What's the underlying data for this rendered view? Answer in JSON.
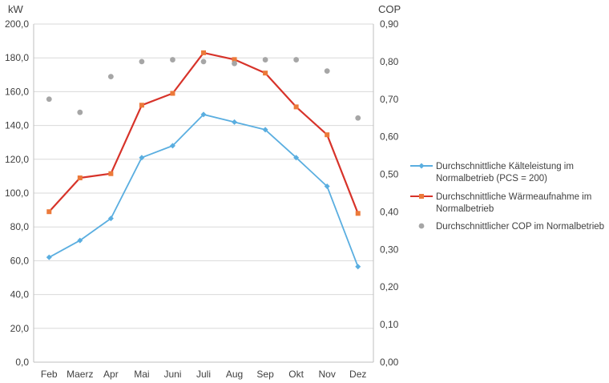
{
  "chart_data": {
    "type": "line",
    "title": "",
    "categories": [
      "Feb",
      "Maerz",
      "Apr",
      "Mai",
      "Juni",
      "Juli",
      "Aug",
      "Sep",
      "Okt",
      "Nov",
      "Dez"
    ],
    "y_left": {
      "label": "kW",
      "ylim": [
        0,
        200
      ],
      "ticks": [
        "0,0",
        "20,0",
        "40,0",
        "60,0",
        "80,0",
        "100,0",
        "120,0",
        "140,0",
        "160,0",
        "180,0",
        "200,0"
      ]
    },
    "y_right": {
      "label": "COP",
      "ylim": [
        0,
        0.9
      ],
      "ticks": [
        "0,00",
        "0,10",
        "0,20",
        "0,30",
        "0,40",
        "0,50",
        "0,60",
        "0,70",
        "0,80",
        "0,90"
      ]
    },
    "grid": true,
    "legend_position": "right",
    "series": [
      {
        "name": "Durchschnittliche Kälteleistung im Normalbetrieb (PCS = 200)",
        "legend_lines": [
          "Durchschnittliche Kälteleistung im",
          "Normalbetrieb (PCS = 200)"
        ],
        "axis": "left",
        "color": "#5aaee0",
        "marker": "diamond",
        "line": true,
        "values": [
          62,
          72,
          85,
          121,
          128,
          146.5,
          142,
          137.5,
          121,
          104,
          56.5
        ]
      },
      {
        "name": "Durchschnittliche Wärmeaufnahme im Normalbetrieb",
        "legend_lines": [
          "Durchschnittliche Wärmeaufnahme im",
          "Normalbetrieb"
        ],
        "axis": "left",
        "color": "#d7332a",
        "marker_color": "#ec7a3a",
        "marker": "square",
        "line": true,
        "values": [
          89,
          109,
          111.5,
          152,
          159,
          183,
          179,
          171,
          151,
          134.5,
          88
        ]
      },
      {
        "name": "Durchschnittlicher COP im Normalbetrieb",
        "legend_lines": [
          "Durchschnittlicher COP im Normalbetrieb"
        ],
        "axis": "right",
        "color": "#a6a6a6",
        "marker": "circle",
        "line": false,
        "values": [
          0.7,
          0.665,
          0.76,
          0.8,
          0.805,
          0.8,
          0.795,
          0.805,
          0.805,
          0.775,
          0.65
        ]
      }
    ]
  }
}
